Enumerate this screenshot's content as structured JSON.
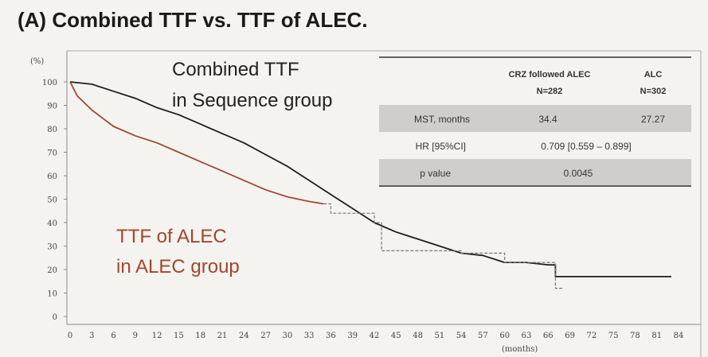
{
  "chart_data": {
    "type": "line",
    "title": "(A) Combined TTF vs. TTF of ALEC.",
    "ylabel": "(%)",
    "xlabel": "(months)",
    "xlim": [
      0,
      84
    ],
    "ylim": [
      0,
      100
    ],
    "x_ticks": [
      "0",
      "3",
      "6",
      "9",
      "12",
      "15",
      "18",
      "21",
      "24",
      "27",
      "30",
      "33",
      "36",
      "39",
      "42",
      "45",
      "48",
      "51",
      "54",
      "57",
      "60",
      "63",
      "66",
      "69",
      "72",
      "75",
      "78",
      "81",
      "84"
    ],
    "y_ticks": [
      "0",
      "10",
      "20",
      "30",
      "40",
      "50",
      "60",
      "70",
      "80",
      "90",
      "100"
    ],
    "series": [
      {
        "name": "Combined TTF in Sequence group",
        "color": "#1e1e1e",
        "points": [
          [
            0,
            100
          ],
          [
            3,
            99
          ],
          [
            6,
            96
          ],
          [
            9,
            93
          ],
          [
            12,
            89
          ],
          [
            15,
            86
          ],
          [
            18,
            82
          ],
          [
            21,
            78
          ],
          [
            24,
            74
          ],
          [
            27,
            69
          ],
          [
            30,
            64
          ],
          [
            33,
            58
          ],
          [
            36,
            52
          ],
          [
            39,
            46
          ],
          [
            42,
            40
          ],
          [
            45,
            36
          ],
          [
            48,
            33
          ],
          [
            51,
            30
          ],
          [
            54,
            27
          ],
          [
            57,
            26
          ],
          [
            60,
            23
          ],
          [
            63,
            23
          ],
          [
            66,
            22
          ],
          [
            67,
            22
          ],
          [
            67,
            17
          ],
          [
            72,
            17
          ],
          [
            78,
            17
          ],
          [
            83,
            17
          ]
        ]
      },
      {
        "name": "TTF of ALEC in ALEC group",
        "color": "#9c4a3c",
        "points": [
          [
            0,
            100
          ],
          [
            1,
            94
          ],
          [
            3,
            88
          ],
          [
            6,
            81
          ],
          [
            9,
            77
          ],
          [
            12,
            74
          ],
          [
            15,
            70
          ],
          [
            18,
            66
          ],
          [
            21,
            62
          ],
          [
            24,
            58
          ],
          [
            27,
            54
          ],
          [
            30,
            51
          ],
          [
            33,
            49
          ],
          [
            35,
            48
          ]
        ]
      },
      {
        "name": "TTF of ALEC (tail)",
        "color": "#777777",
        "dashed": true,
        "points": [
          [
            35,
            48
          ],
          [
            36,
            48
          ],
          [
            36,
            44
          ],
          [
            39,
            44
          ],
          [
            42,
            44
          ],
          [
            42,
            40
          ],
          [
            43,
            40
          ],
          [
            43,
            28
          ],
          [
            54,
            28
          ],
          [
            54,
            27
          ],
          [
            60,
            27
          ],
          [
            60,
            23
          ],
          [
            66,
            23
          ],
          [
            67,
            23
          ],
          [
            67,
            12
          ],
          [
            68,
            12
          ]
        ]
      }
    ],
    "annotations": {
      "combined_line1": "Combined TTF",
      "combined_line2": "in Sequence group",
      "alec_line1": "TTF of ALEC",
      "alec_line2": "in ALEC group"
    },
    "stats_table": {
      "header_col1": "CRZ followed ALEC",
      "header_col1_n": "N=282",
      "header_col2": "ALC",
      "header_col2_n": "N=302",
      "rows": [
        {
          "label": "MST, months",
          "value1": "34.4",
          "value2": "27.27"
        },
        {
          "label": "HR [95%CI]",
          "value1": "0.709 [0.559 – 0.899]",
          "value2": ""
        },
        {
          "label": "p value",
          "value1": "0.0045",
          "value2": ""
        }
      ]
    },
    "colors": {
      "combined": "#1e1e1e",
      "alec": "#9c4a3c",
      "alec_annotation": "#a3462e",
      "table_shade": "#cfcecb"
    }
  }
}
